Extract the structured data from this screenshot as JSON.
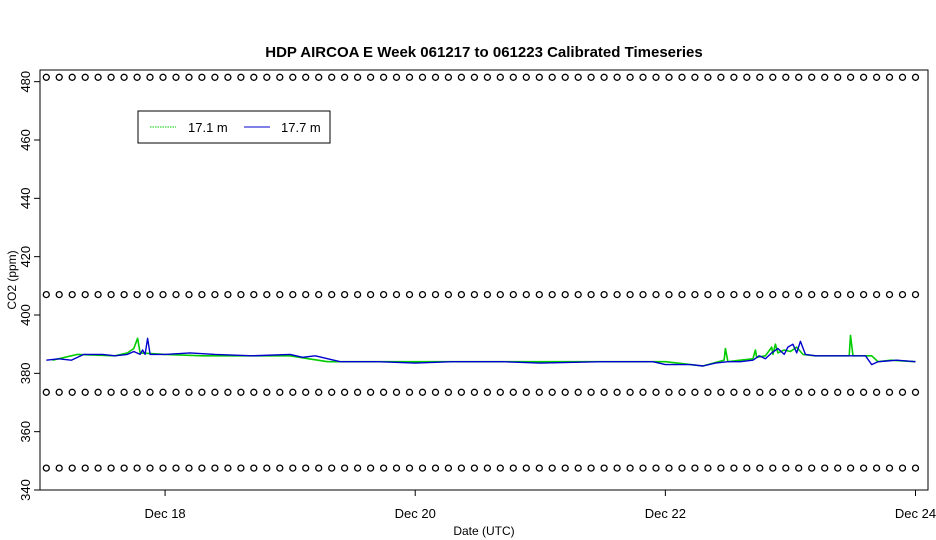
{
  "chart_data": {
    "type": "line",
    "title": "HDP AIRCOA E  Week 061217 to 061223  Calibrated Timeseries",
    "xlabel": "Date (UTC)",
    "ylabel": "CO2 (ppm)",
    "xlim": [
      17.0,
      24.1
    ],
    "ylim": [
      340,
      484
    ],
    "x_ticks": [
      {
        "value": 18,
        "label": "Dec 18"
      },
      {
        "value": 20,
        "label": "Dec 20"
      },
      {
        "value": 22,
        "label": "Dec 22"
      },
      {
        "value": 24,
        "label": "Dec 24"
      }
    ],
    "y_ticks": [
      340,
      360,
      380,
      400,
      420,
      440,
      460,
      480
    ],
    "legend": {
      "position": "top-left",
      "entries": [
        {
          "label": "17.1 m",
          "color": "#00cc00"
        },
        {
          "label": "17.7 m",
          "color": "#0000cc"
        }
      ]
    },
    "series": [
      {
        "name": "17.1 m",
        "color": "#00cc00",
        "x": [
          17.1,
          17.3,
          17.6,
          17.7,
          17.75,
          17.78,
          17.8,
          18.0,
          18.3,
          18.6,
          19.0,
          19.15,
          19.3,
          19.7,
          20.0,
          20.5,
          21.0,
          21.5,
          22.0,
          22.2,
          22.3,
          22.47,
          22.48,
          22.5,
          22.6,
          22.7,
          22.72,
          22.73,
          22.8,
          22.85,
          22.86,
          22.88,
          22.9,
          22.95,
          23.0,
          23.05,
          23.1,
          23.2,
          23.4,
          23.47,
          23.48,
          23.5,
          23.65,
          23.7,
          23.8,
          24.0
        ],
        "y": [
          384.5,
          386.5,
          386.0,
          387.0,
          388.5,
          392.0,
          387.0,
          386.5,
          386.0,
          386.0,
          386.0,
          385.0,
          384.0,
          384.0,
          384.0,
          384.0,
          384.0,
          384.0,
          384.0,
          383.0,
          382.5,
          384.5,
          388.5,
          384.0,
          384.5,
          385.0,
          388.0,
          385.5,
          386.0,
          389.0,
          386.5,
          390.0,
          387.0,
          388.0,
          387.5,
          389.0,
          386.5,
          386.0,
          386.0,
          386.0,
          393.0,
          386.0,
          386.0,
          384.0,
          384.5,
          384.0
        ]
      },
      {
        "name": "17.7 m",
        "color": "#0000cc",
        "x": [
          17.05,
          17.15,
          17.25,
          17.35,
          17.5,
          17.6,
          17.7,
          17.75,
          17.8,
          17.82,
          17.84,
          17.86,
          17.88,
          18.0,
          18.2,
          18.4,
          18.7,
          19.0,
          19.1,
          19.2,
          19.4,
          19.7,
          20.0,
          20.3,
          20.7,
          21.0,
          21.5,
          21.9,
          22.0,
          22.2,
          22.3,
          22.4,
          22.5,
          22.6,
          22.7,
          22.75,
          22.8,
          22.85,
          22.9,
          22.95,
          22.98,
          23.02,
          23.05,
          23.08,
          23.12,
          23.2,
          23.4,
          23.6,
          23.65,
          23.7,
          23.85,
          24.0
        ],
        "y": [
          384.5,
          385.0,
          384.5,
          386.5,
          386.5,
          386.0,
          386.5,
          387.5,
          386.5,
          388.0,
          386.5,
          392.0,
          386.5,
          386.5,
          387.0,
          386.5,
          386.0,
          386.5,
          385.5,
          386.0,
          384.0,
          384.0,
          383.5,
          384.0,
          384.0,
          383.5,
          384.0,
          384.0,
          383.0,
          383.0,
          382.5,
          383.5,
          384.0,
          384.0,
          384.5,
          386.0,
          385.0,
          387.0,
          388.5,
          386.5,
          389.0,
          390.0,
          387.0,
          391.0,
          386.5,
          386.0,
          386.0,
          386.0,
          383.0,
          384.0,
          384.5,
          384.0
        ]
      }
    ],
    "reference_points": {
      "marker": "open-circle",
      "color": "#000000",
      "levels": [
        481.5,
        407,
        373.5,
        347.5
      ],
      "x_start": 17.05,
      "x_end": 24.0,
      "count_per_level": 68
    }
  }
}
